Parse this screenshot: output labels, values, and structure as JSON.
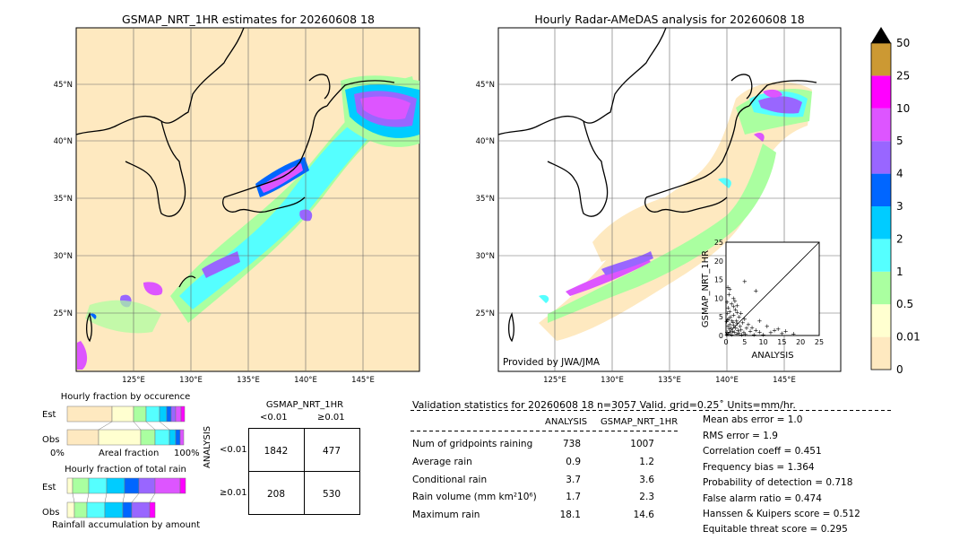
{
  "panels": {
    "left_title": "GSMAP_NRT_1HR estimates for 20260608 18",
    "right_title": "Hourly Radar-AMeDAS analysis for 20260608 18",
    "provided_by": "Provided by JWA/JMA",
    "lat_ticks": [
      "45°N",
      "40°N",
      "35°N",
      "30°N",
      "25°N"
    ],
    "lon_ticks": [
      "125°E",
      "130°E",
      "135°E",
      "140°E",
      "145°E"
    ]
  },
  "colorbar": {
    "labels": [
      "0",
      "0.01",
      "0.5",
      "1",
      "2",
      "3",
      "4",
      "5",
      "10",
      "25",
      "50"
    ],
    "colors": [
      "#fee9c0",
      "#ffffd0",
      "#aaffa0",
      "#55ffff",
      "#00ccff",
      "#0066ff",
      "#9966ff",
      "#dd55ff",
      "#ff00ff",
      "#cc9933"
    ]
  },
  "chart_data": [
    {
      "type": "scatter",
      "title": "",
      "xlabel": "ANALYSIS",
      "ylabel": "GSMAP_NRT_1HR",
      "xlim": [
        0,
        25
      ],
      "ylim": [
        0,
        25
      ],
      "x_ticks": [
        "0",
        "5",
        "10",
        "15",
        "20",
        "25"
      ],
      "y_ticks": [
        "0",
        "5",
        "10",
        "15",
        "20",
        "25"
      ],
      "points": [
        [
          0.5,
          13
        ],
        [
          1,
          12.5
        ],
        [
          0.8,
          11
        ],
        [
          2,
          10
        ],
        [
          0.3,
          9
        ],
        [
          1.5,
          8.5
        ],
        [
          3,
          8
        ],
        [
          0.6,
          7.5
        ],
        [
          2.5,
          7
        ],
        [
          1,
          6.5
        ],
        [
          4,
          6
        ],
        [
          0.4,
          6
        ],
        [
          2,
          5.5
        ],
        [
          3.5,
          5
        ],
        [
          1.2,
          5
        ],
        [
          0.7,
          4.5
        ],
        [
          5,
          4.5
        ],
        [
          2.8,
          4
        ],
        [
          1.6,
          4
        ],
        [
          0.2,
          3.8
        ],
        [
          4.5,
          3.5
        ],
        [
          3,
          3.2
        ],
        [
          6,
          3
        ],
        [
          1,
          3
        ],
        [
          2,
          2.8
        ],
        [
          0.5,
          2.5
        ],
        [
          3.8,
          2.5
        ],
        [
          7,
          2.2
        ],
        [
          1.4,
          2
        ],
        [
          2.6,
          2
        ],
        [
          5.5,
          2
        ],
        [
          0.9,
          1.8
        ],
        [
          4,
          1.6
        ],
        [
          8,
          1.5
        ],
        [
          3.2,
          1.4
        ],
        [
          1.8,
          1.2
        ],
        [
          6.5,
          1.2
        ],
        [
          0.3,
          1
        ],
        [
          2.2,
          1
        ],
        [
          9,
          1
        ],
        [
          4.8,
          0.9
        ],
        [
          1.1,
          0.8
        ],
        [
          3.5,
          0.7
        ],
        [
          12,
          0.8
        ],
        [
          0.6,
          0.5
        ],
        [
          2.9,
          0.5
        ],
        [
          5.2,
          0.4
        ],
        [
          15,
          0.6
        ],
        [
          1.5,
          0.3
        ],
        [
          7.5,
          0.3
        ],
        [
          0.2,
          0.2
        ],
        [
          4.2,
          0.2
        ],
        [
          18.1,
          0.5
        ],
        [
          10,
          0.2
        ],
        [
          13,
          1.5
        ],
        [
          16,
          1.2
        ],
        [
          11,
          2.5
        ],
        [
          14,
          1.8
        ],
        [
          9,
          4
        ],
        [
          8,
          12
        ],
        [
          5,
          14.6
        ],
        [
          2,
          7.8
        ],
        [
          3,
          6.3
        ],
        [
          0.4,
          4.2
        ],
        [
          1.9,
          3.6
        ],
        [
          2.4,
          9.2
        ]
      ]
    },
    {
      "type": "bar",
      "title": "Hourly fraction by occurence",
      "rows": [
        "Est",
        "Obs"
      ],
      "x_ticks": [
        "0%",
        "Areal fraction",
        "100%"
      ]
    },
    {
      "type": "bar",
      "title": "Hourly fraction of total rain",
      "rows": [
        "Est",
        "Obs"
      ],
      "caption": "Rainfall accumulation by amount"
    }
  ],
  "contingency": {
    "title": "GSMAP_NRT_1HR",
    "col_headers": [
      "<0.01",
      "≥0.01"
    ],
    "row_label": "ANALYSIS",
    "row_headers": [
      "<0.01",
      "≥0.01"
    ],
    "cells": [
      [
        "1842",
        "477"
      ],
      [
        "208",
        "530"
      ]
    ]
  },
  "validation": {
    "header": "Validation statistics for 20260608 18  n=3057 Valid. grid=0.25˚ Units=mm/hr.",
    "col_analysis": "ANALYSIS",
    "col_gsmap": "GSMAP_NRT_1HR",
    "rows": [
      {
        "label": "Num of gridpoints raining",
        "a": "738",
        "g": "1007"
      },
      {
        "label": "Average rain",
        "a": "0.9",
        "g": "1.2"
      },
      {
        "label": "Conditional rain",
        "a": "3.7",
        "g": "3.6"
      },
      {
        "label": "Rain volume (mm km²10⁶)",
        "a": "1.7",
        "g": "2.3"
      },
      {
        "label": "Maximum rain",
        "a": "18.1",
        "g": "14.6"
      }
    ],
    "scores": [
      "Mean abs error =    1.0",
      "RMS error =    1.9",
      "Correlation coeff =  0.451",
      "Frequency bias =  1.364",
      "Probability of detection =  0.718",
      "False alarm ratio =  0.474",
      "Hanssen & Kuipers score =  0.512",
      "Equitable threat score =  0.295"
    ]
  }
}
